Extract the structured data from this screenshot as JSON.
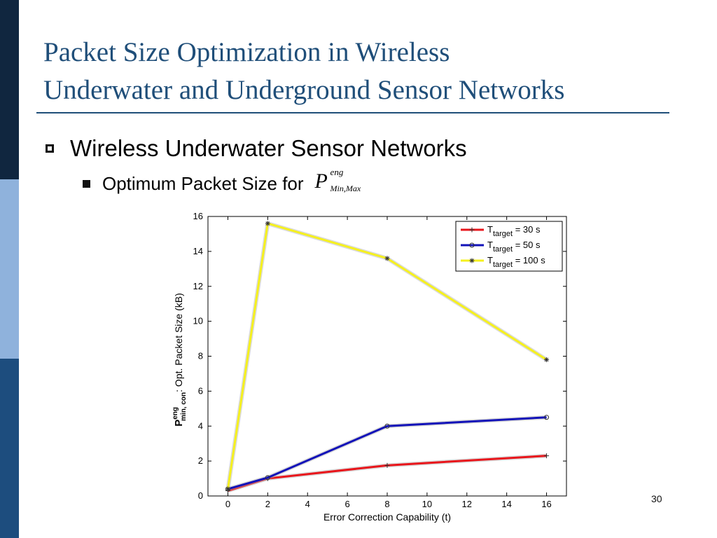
{
  "slide": {
    "title_line1": "Packet Size Optimization in Wireless",
    "title_line2": "Underwater and Underground Sensor Networks",
    "bullet1": "Wireless Underwater Sensor Networks",
    "bullet2": "Optimum Packet Size for",
    "formula": {
      "main": "P",
      "sup": "eng",
      "sub": "Min,Max"
    },
    "page_number": "30",
    "colors": {
      "title": "#1f4e79",
      "sidebar_dark": "#10263f",
      "sidebar_light": "#8fb2dc",
      "sidebar_mid": "#1d4d7e"
    }
  },
  "chart_data": {
    "type": "line",
    "x": [
      0,
      2,
      8,
      16
    ],
    "series": [
      {
        "name": "T_target = 30 s",
        "values": [
          0.3,
          1.0,
          1.75,
          2.3
        ],
        "color": "#e8151b",
        "marker": "plus"
      },
      {
        "name": "T_target = 50 s",
        "values": [
          0.4,
          1.05,
          4.0,
          4.5
        ],
        "color": "#1212b8",
        "marker": "circle"
      },
      {
        "name": "T_target = 100 s",
        "values": [
          0.4,
          15.6,
          13.6,
          7.8
        ],
        "color": "#f5f01e",
        "marker": "star"
      }
    ],
    "legend": [
      {
        "prefix": "T",
        "sub": "target",
        "suffix": " = 30 s"
      },
      {
        "prefix": "T",
        "sub": "target",
        "suffix": " = 50 s"
      },
      {
        "prefix": "T",
        "sub": "target",
        "suffix": " = 100 s"
      }
    ],
    "xlabel": "Error Correction Capability (t)",
    "ylabel": {
      "main": "P",
      "sup": "eng",
      "sub": "min, con",
      "rest": ": Opt. Packet Size (kB)"
    },
    "xlim": [
      -1,
      17
    ],
    "ylim": [
      0,
      16
    ],
    "xticks": [
      0,
      2,
      4,
      6,
      8,
      10,
      12,
      14,
      16
    ],
    "yticks": [
      0,
      2,
      4,
      6,
      8,
      10,
      12,
      14,
      16
    ],
    "grid": false,
    "legend_position": "top-right"
  }
}
